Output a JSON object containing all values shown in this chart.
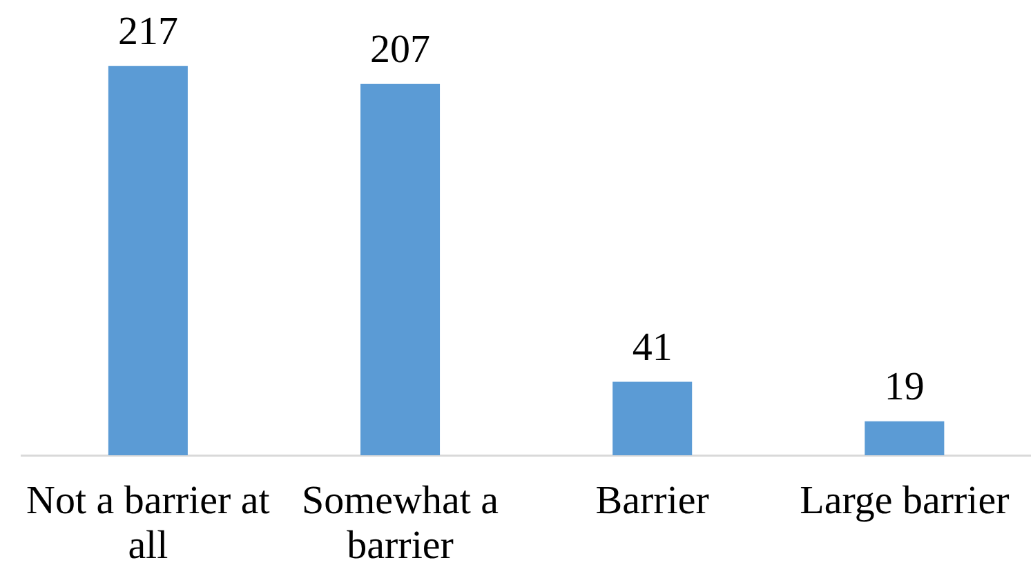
{
  "chart_data": {
    "type": "bar",
    "categories": [
      "Not a barrier at all",
      "Somewhat a barrier",
      "Barrier",
      "Large barrier"
    ],
    "values": [
      217,
      207,
      41,
      19
    ],
    "color": "#5b9bd5",
    "data_labels": true,
    "tick_labels": "x",
    "grid": false,
    "legend": false
  }
}
